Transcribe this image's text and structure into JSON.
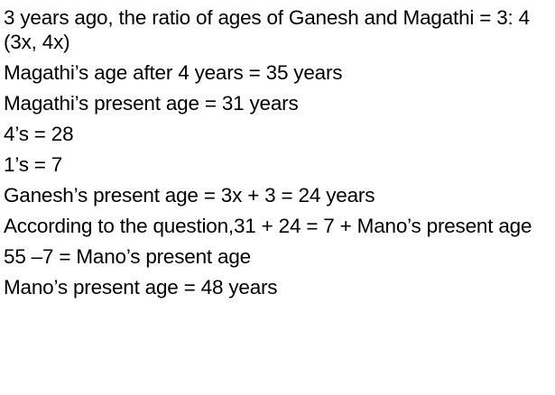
{
  "lines": [
    "3 years ago, the ratio of ages of Ganesh and Magathi = 3: 4 (3x, 4x)",
    "Magathi’s age after 4 years = 35 years",
    "Magathi’s present age = 31 years",
    "4’s = 28",
    "1’s = 7",
    "Ganesh’s present age = 3x + 3 = 24 years",
    "According to the question,31 + 24 = 7 + Mano’s present age",
    "55 –7 = Mano’s present age",
    "Mano’s present age = 48 years"
  ]
}
